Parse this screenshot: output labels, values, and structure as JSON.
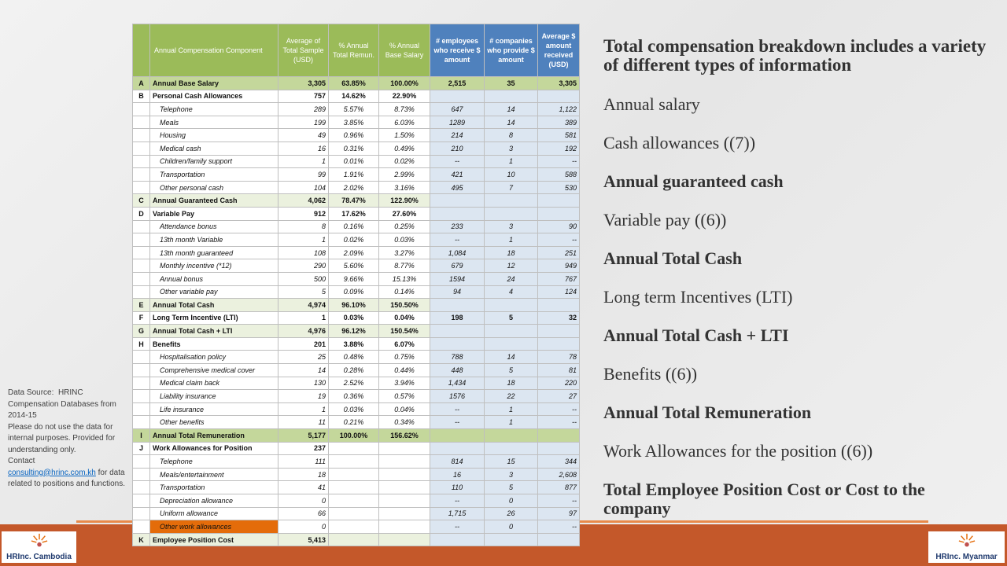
{
  "table": {
    "header": [
      null,
      "Annual Compensation Component",
      "Average of Total Sample (USD)",
      "% Annual Total Remun.",
      "% Annual Base Salary",
      "# employees who receive $ amount",
      "# companies who provide $ amount",
      "Average $ amount received (USD)"
    ],
    "rows": [
      [
        "A",
        "Annual Base Salary",
        "3,305",
        "63.85%",
        "100.00%",
        "2,515",
        "35",
        "3,305"
      ],
      [
        "B",
        "Personal Cash Allowances",
        "757",
        "14.62%",
        "22.90%",
        null,
        null,
        null
      ],
      [
        null,
        "Telephone",
        "289",
        "5.57%",
        "8.73%",
        "647",
        "14",
        "1,122"
      ],
      [
        null,
        "Meals",
        "199",
        "3.85%",
        "6.03%",
        "1289",
        "14",
        "389"
      ],
      [
        null,
        "Housing",
        "49",
        "0.96%",
        "1.50%",
        "214",
        "8",
        "581"
      ],
      [
        null,
        "Medical cash",
        "16",
        "0.31%",
        "0.49%",
        "210",
        "3",
        "192"
      ],
      [
        null,
        "Children/family support",
        "1",
        "0.01%",
        "0.02%",
        "--",
        "1",
        "--"
      ],
      [
        null,
        "Transportation",
        "99",
        "1.91%",
        "2.99%",
        "421",
        "10",
        "588"
      ],
      [
        null,
        "Other personal cash",
        "104",
        "2.02%",
        "3.16%",
        "495",
        "7",
        "530"
      ],
      [
        "C",
        "Annual Guaranteed  Cash",
        "4,062",
        "78.47%",
        "122.90%",
        null,
        null,
        null
      ],
      [
        "D",
        "Variable Pay",
        "912",
        "17.62%",
        "27.60%",
        null,
        null,
        null
      ],
      [
        null,
        "Attendance bonus",
        "8",
        "0.16%",
        "0.25%",
        "233",
        "3",
        "90"
      ],
      [
        null,
        "13th month Variable",
        "1",
        "0.02%",
        "0.03%",
        "--",
        "1",
        "--"
      ],
      [
        null,
        "13th month guaranteed",
        "108",
        "2.09%",
        "3.27%",
        "1,084",
        "18",
        "251"
      ],
      [
        null,
        "Monthly incentive (*12)",
        "290",
        "5.60%",
        "8.77%",
        "679",
        "12",
        "949"
      ],
      [
        null,
        "Annual bonus",
        "500",
        "9.66%",
        "15.13%",
        "1594",
        "24",
        "767"
      ],
      [
        null,
        "Other variable pay",
        "5",
        "0.09%",
        "0.14%",
        "94",
        "4",
        "124"
      ],
      [
        "E",
        "Annual Total Cash",
        "4,974",
        "96.10%",
        "150.50%",
        null,
        null,
        null
      ],
      [
        "F",
        "Long Term Incentive (LTI)",
        "1",
        "0.03%",
        "0.04%",
        "198",
        "5",
        "32"
      ],
      [
        "G",
        "Annual Total Cash + LTI",
        "4,976",
        "96.12%",
        "150.54%",
        null,
        null,
        null
      ],
      [
        "H",
        "Benefits",
        "201",
        "3.88%",
        "6.07%",
        null,
        null,
        null
      ],
      [
        null,
        "Hospitalisation policy",
        "25",
        "0.48%",
        "0.75%",
        "788",
        "14",
        "78"
      ],
      [
        null,
        "Comprehensive medical cover",
        "14",
        "0.28%",
        "0.44%",
        "448",
        "5",
        "81"
      ],
      [
        null,
        "Medical claim back",
        "130",
        "2.52%",
        "3.94%",
        "1,434",
        "18",
        "220"
      ],
      [
        null,
        "Liability insurance",
        "19",
        "0.36%",
        "0.57%",
        "1576",
        "22",
        "27"
      ],
      [
        null,
        "Life insurance",
        "1",
        "0.03%",
        "0.04%",
        "--",
        "1",
        "--"
      ],
      [
        null,
        "Other benefits",
        "11",
        "0.21%",
        "0.34%",
        "--",
        "1",
        "--"
      ],
      [
        "I",
        "Annual Total Remuneration",
        "5,177",
        "100.00%",
        "156.62%",
        null,
        null,
        null
      ],
      [
        "J",
        "Work Allowances for Position",
        "237",
        null,
        null,
        null,
        null,
        null
      ],
      [
        null,
        "Telephone",
        "111",
        null,
        null,
        "814",
        "15",
        "344"
      ],
      [
        null,
        "Meals/entertainment",
        "18",
        null,
        null,
        "16",
        "3",
        "2,608"
      ],
      [
        null,
        "Transportation",
        "41",
        null,
        null,
        "110",
        "5",
        "877"
      ],
      [
        null,
        "Depreciation allowance",
        "0",
        null,
        null,
        "--",
        "0",
        "--"
      ],
      [
        null,
        "Uniform allowance",
        "66",
        null,
        null,
        "1,715",
        "26",
        "97"
      ],
      [
        null,
        "Other work allowances",
        "0",
        null,
        null,
        "--",
        "0",
        "--"
      ],
      [
        "K",
        "Employee Position Cost",
        "5,413",
        null,
        null,
        null,
        null,
        null
      ]
    ]
  },
  "bullets": {
    "heading": "Total compensation breakdown includes a variety of different types of information",
    "items": [
      {
        "text": "Annual salary",
        "bold": false
      },
      {
        "text": "Cash allowances ((7))",
        "bold": false
      },
      {
        "text": "Annual guaranteed cash",
        "bold": true
      },
      {
        "text": "Variable pay ((6))",
        "bold": false
      },
      {
        "text": "Annual Total Cash",
        "bold": true
      },
      {
        "text": "Long term Incentives (LTI)",
        "bold": false
      },
      {
        "text": "Annual Total Cash + LTI",
        "bold": true
      },
      {
        "text": "Benefits ((6))",
        "bold": false
      },
      {
        "text": "Annual Total Remuneration",
        "bold": true
      },
      {
        "text": "Work Allowances for the position ((6))",
        "bold": false
      },
      {
        "text": "Total Employee Position Cost or Cost to the company",
        "bold": true
      }
    ]
  },
  "source": {
    "label": "Data Source:",
    "text": "HRINC Compensation Databases from 2014-15",
    "note": "Please do not use the data for internal purposes. Provided for understanding only.",
    "contact": "Contact",
    "email": "consulting@hrinc.com.kh",
    "after": "for data related to positions and functions."
  },
  "logos": {
    "left": "HRInc. Cambodia",
    "right": "HRInc. Myanmar"
  }
}
